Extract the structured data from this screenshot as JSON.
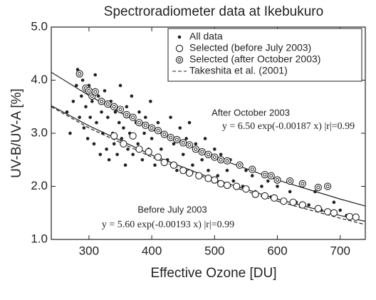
{
  "chart_data": {
    "type": "scatter",
    "title": "Spectroradiometer data at Ikebukuro",
    "x_label": "Effective Ozone [DU]",
    "y_label": "UV-B/UV-A [%]",
    "xlim": [
      240,
      740
    ],
    "xticks": [
      300,
      400,
      500,
      600,
      700
    ],
    "ylim": [
      1,
      5
    ],
    "yticks": [
      {
        "value": 1,
        "label": "1.0"
      },
      {
        "value": 2,
        "label": "2.0"
      },
      {
        "value": 3,
        "label": "3.0"
      },
      {
        "value": 4,
        "label": "4.0"
      },
      {
        "value": 5,
        "label": "5.0"
      }
    ],
    "legend": "upper right",
    "annotations": [
      "After October 2003",
      "y = 6.50 exp(-0.00187 x)  |r|=0.99",
      "Before July 2003",
      "y = 5.60 exp(-0.00193 x)  |r|=0.99"
    ],
    "series": [
      {
        "name": "All data",
        "type": "scatter",
        "marker": "dot",
        "color": "#222222",
        "x": [
          265,
          270,
          275,
          280,
          282,
          285,
          288,
          290,
          292,
          295,
          298,
          300,
          302,
          305,
          308,
          310,
          312,
          315,
          318,
          320,
          322,
          325,
          328,
          330,
          332,
          335,
          338,
          340,
          342,
          345,
          348,
          350,
          352,
          355,
          358,
          360,
          362,
          365,
          368,
          370,
          375,
          378,
          380,
          385,
          388,
          390,
          395,
          398,
          400,
          405,
          410,
          415,
          420,
          425,
          430,
          435,
          440,
          445,
          450,
          455,
          460,
          465,
          470,
          480,
          485,
          490,
          500,
          505,
          510,
          520,
          525,
          530,
          540,
          545,
          550,
          560,
          565,
          575,
          585,
          590,
          600,
          610,
          620,
          630,
          640,
          650,
          660,
          670,
          690,
          700,
          710
        ],
        "values": [
          3.4,
          3.0,
          3.6,
          3.9,
          4.2,
          3.3,
          3.7,
          4.0,
          3.1,
          3.5,
          2.9,
          3.9,
          3.3,
          3.6,
          2.8,
          4.1,
          3.2,
          3.7,
          2.6,
          3.4,
          3.0,
          3.8,
          2.7,
          3.3,
          2.5,
          3.6,
          3.0,
          2.8,
          3.4,
          2.6,
          3.2,
          3.9,
          2.9,
          3.1,
          2.4,
          3.5,
          2.7,
          3.0,
          3.7,
          2.6,
          3.2,
          2.8,
          3.4,
          2.5,
          3.0,
          3.3,
          2.7,
          3.6,
          2.9,
          2.4,
          3.2,
          2.7,
          3.0,
          2.5,
          3.3,
          2.8,
          2.3,
          3.1,
          2.6,
          2.9,
          3.2,
          2.4,
          2.8,
          2.5,
          2.9,
          2.3,
          2.7,
          2.2,
          2.6,
          2.3,
          2.5,
          2.1,
          2.4,
          2.0,
          2.3,
          2.2,
          1.9,
          2.0,
          2.1,
          1.8,
          2.0,
          1.75,
          1.9,
          1.7,
          2.0,
          1.65,
          1.9,
          1.55,
          1.7,
          1.55,
          1.45
        ]
      },
      {
        "name": "Selected (before July 2003)",
        "type": "scatter",
        "marker": "circle",
        "color": "#222222",
        "x": [
          340,
          355,
          370,
          380,
          395,
          410,
          420,
          435,
          450,
          460,
          475,
          490,
          500,
          510,
          520,
          535,
          550,
          565,
          580,
          595,
          610,
          625,
          640,
          665,
          680,
          690,
          715,
          725
        ],
        "values": [
          2.95,
          2.8,
          2.95,
          2.7,
          2.65,
          2.55,
          2.45,
          2.4,
          2.3,
          2.25,
          2.2,
          2.15,
          2.12,
          2.05,
          2.02,
          2.0,
          1.95,
          1.85,
          1.82,
          1.78,
          1.72,
          1.7,
          1.65,
          1.58,
          1.52,
          1.5,
          1.43,
          1.42
        ]
      },
      {
        "name": "Selected (after October 2003)",
        "type": "scatter",
        "marker": "double-circle",
        "color": "#222222",
        "x": [
          285,
          295,
          300,
          305,
          310,
          320,
          330,
          340,
          350,
          360,
          370,
          380,
          390,
          400,
          410,
          420,
          430,
          440,
          450,
          460,
          470,
          480,
          490,
          500,
          510,
          520,
          540,
          560,
          580,
          590,
          600,
          620,
          640,
          665,
          680
        ],
        "values": [
          4.12,
          3.85,
          3.8,
          3.7,
          3.78,
          3.6,
          3.55,
          3.5,
          3.45,
          3.35,
          3.3,
          3.2,
          3.15,
          3.1,
          3.05,
          2.98,
          2.92,
          2.88,
          2.82,
          2.78,
          2.7,
          2.65,
          2.6,
          2.55,
          2.5,
          2.48,
          2.4,
          2.32,
          2.22,
          2.2,
          2.12,
          2.1,
          2.05,
          1.98,
          2.0
        ]
      },
      {
        "type": "line",
        "style": "solid",
        "color": "#222222",
        "x": [
          240,
          300,
          400,
          500,
          600,
          700,
          740
        ],
        "values": [
          4.15,
          3.71,
          3.07,
          2.55,
          2.12,
          1.76,
          1.63
        ]
      },
      {
        "type": "line",
        "style": "solid",
        "color": "#222222",
        "x": [
          240,
          300,
          400,
          500,
          600,
          700,
          740
        ],
        "values": [
          3.52,
          3.14,
          2.59,
          2.13,
          1.76,
          1.45,
          1.34
        ]
      },
      {
        "name": "Takeshita et al. (2001)",
        "type": "line",
        "style": "dashed",
        "color": "#222222",
        "x": [
          240,
          300,
          400,
          500,
          600,
          700,
          740
        ],
        "values": [
          3.5,
          3.1,
          2.55,
          2.1,
          1.72,
          1.4,
          1.28
        ]
      }
    ]
  }
}
